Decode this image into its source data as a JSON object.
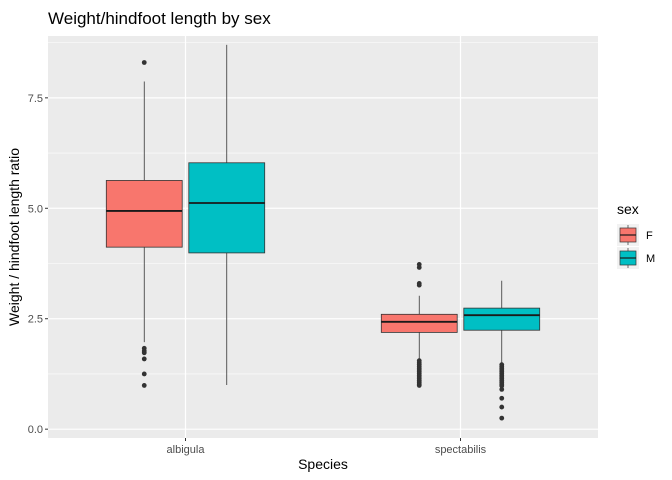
{
  "chart_data": {
    "type": "box",
    "title": "Weight/hindfoot length by sex",
    "xlabel": "Species",
    "ylabel": "Weight / hindfoot length ratio",
    "categories": [
      "albigula",
      "spectabilis"
    ],
    "ylim": [
      -0.2,
      8.9
    ],
    "yticks": [
      0.0,
      2.5,
      5.0,
      7.5
    ],
    "ytick_labels": [
      "0.0",
      "2.5",
      "5.0",
      "7.5"
    ],
    "grid": true,
    "legend": {
      "title": "sex",
      "placement": "right",
      "entries": [
        {
          "label": "F",
          "color": "#F8766D"
        },
        {
          "label": "M",
          "color": "#00BFC4"
        }
      ]
    },
    "series": [
      {
        "name": "F",
        "color": "#F8766D",
        "boxes": [
          {
            "category": "albigula",
            "q1": 4.12,
            "median": 4.94,
            "q3": 5.63,
            "whisker_low": 1.97,
            "whisker_high": 7.87,
            "outliers": [
              8.3,
              1.83,
              1.77,
              1.73,
              1.59,
              1.25,
              0.99
            ]
          },
          {
            "category": "spectabilis",
            "q1": 2.19,
            "median": 2.43,
            "q3": 2.6,
            "whisker_low": 1.58,
            "whisker_high": 3.02,
            "outliers": [
              3.73,
              3.66,
              3.3,
              3.26,
              1.55,
              1.5,
              1.46,
              1.42,
              1.38,
              1.34,
              1.3,
              1.26,
              1.22,
              1.18,
              1.14,
              1.1,
              1.06,
              1.02,
              0.99
            ]
          }
        ]
      },
      {
        "name": "M",
        "color": "#00BFC4",
        "boxes": [
          {
            "category": "albigula",
            "q1": 3.99,
            "median": 5.12,
            "q3": 6.03,
            "whisker_low": 1.0,
            "whisker_high": 8.7,
            "outliers": []
          },
          {
            "category": "spectabilis",
            "q1": 2.24,
            "median": 2.58,
            "q3": 2.74,
            "whisker_low": 1.5,
            "whisker_high": 3.36,
            "outliers": [
              1.46,
              1.42,
              1.38,
              1.34,
              1.3,
              1.26,
              1.22,
              1.18,
              1.14,
              1.1,
              1.06,
              1.02,
              0.98,
              0.9,
              0.7,
              0.5,
              0.25
            ]
          }
        ]
      }
    ]
  }
}
